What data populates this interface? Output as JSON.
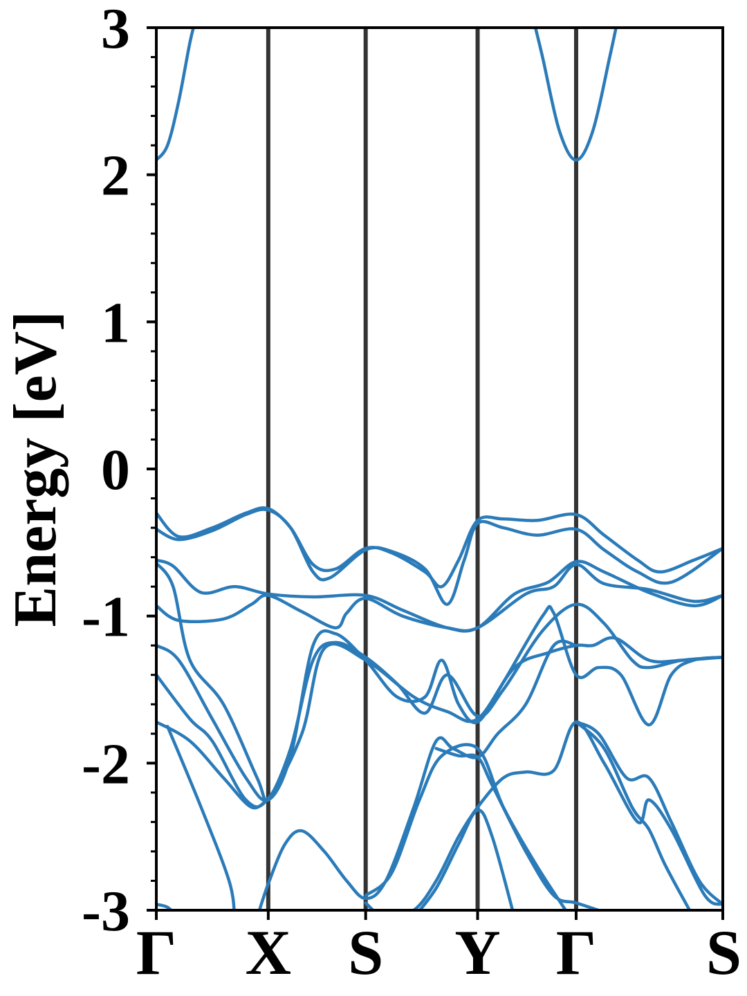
{
  "chart_data": {
    "type": "line",
    "title": "",
    "xlabel": "",
    "ylabel": "Energy [eV]",
    "ylim": [
      -3,
      3
    ],
    "xlim": [
      0,
      5.06
    ],
    "grid": false,
    "legend": "none",
    "colors": {
      "band": "#2b7bb9",
      "kpath": "#333333",
      "axis": "#000000"
    },
    "yticks": [
      {
        "value": 3,
        "label": "3"
      },
      {
        "value": 2,
        "label": "2"
      },
      {
        "value": 1,
        "label": "1"
      },
      {
        "value": 0,
        "label": "0"
      },
      {
        "value": -1,
        "label": "-1"
      },
      {
        "value": -2,
        "label": "-2"
      },
      {
        "value": -3,
        "label": "-3"
      }
    ],
    "kpoints": [
      {
        "label": "Γ",
        "x": 0
      },
      {
        "label": "X",
        "x": 1
      },
      {
        "label": "S",
        "x": 1.87
      },
      {
        "label": "Y",
        "x": 2.87
      },
      {
        "label": "Γ",
        "x": 3.75
      },
      {
        "label": "S",
        "x": 5.06
      }
    ],
    "series": [
      {
        "points": [
          [
            0,
            -0.3
          ],
          [
            0.2,
            -0.46
          ],
          [
            0.5,
            -0.4
          ],
          [
            0.8,
            -0.3
          ],
          [
            1,
            -0.27
          ],
          [
            1.2,
            -0.4
          ],
          [
            1.4,
            -0.65
          ],
          [
            1.6,
            -0.68
          ],
          [
            1.87,
            -0.54
          ],
          [
            2.1,
            -0.57
          ],
          [
            2.4,
            -0.7
          ],
          [
            2.55,
            -0.8
          ],
          [
            2.7,
            -0.62
          ],
          [
            2.87,
            -0.35
          ],
          [
            3.1,
            -0.34
          ],
          [
            3.4,
            -0.35
          ],
          [
            3.75,
            -0.31
          ],
          [
            4.0,
            -0.45
          ],
          [
            4.3,
            -0.62
          ],
          [
            4.5,
            -0.7
          ],
          [
            4.8,
            -0.62
          ],
          [
            5.06,
            -0.54
          ]
        ]
      },
      {
        "points": [
          [
            0,
            -0.41
          ],
          [
            0.2,
            -0.48
          ],
          [
            0.5,
            -0.42
          ],
          [
            0.8,
            -0.31
          ],
          [
            1,
            -0.28
          ],
          [
            1.2,
            -0.4
          ],
          [
            1.4,
            -0.7
          ],
          [
            1.55,
            -0.74
          ],
          [
            1.87,
            -0.55
          ],
          [
            2.1,
            -0.56
          ],
          [
            2.4,
            -0.68
          ],
          [
            2.6,
            -0.92
          ],
          [
            2.75,
            -0.62
          ],
          [
            2.87,
            -0.37
          ],
          [
            3.1,
            -0.4
          ],
          [
            3.4,
            -0.45
          ],
          [
            3.75,
            -0.41
          ],
          [
            4.0,
            -0.55
          ],
          [
            4.3,
            -0.7
          ],
          [
            4.6,
            -0.77
          ],
          [
            5.06,
            -0.54
          ]
        ]
      },
      {
        "points": [
          [
            0,
            -0.62
          ],
          [
            0.15,
            -0.66
          ],
          [
            0.4,
            -0.84
          ],
          [
            0.7,
            -0.8
          ],
          [
            1,
            -0.85
          ],
          [
            1.4,
            -0.87
          ],
          [
            1.87,
            -0.86
          ],
          [
            2.2,
            -0.96
          ],
          [
            2.6,
            -1.08
          ],
          [
            2.87,
            -1.08
          ],
          [
            3.2,
            -0.85
          ],
          [
            3.5,
            -0.77
          ],
          [
            3.75,
            -0.63
          ],
          [
            4.0,
            -0.7
          ],
          [
            4.4,
            -0.84
          ],
          [
            4.8,
            -0.93
          ],
          [
            5.06,
            -0.86
          ]
        ]
      },
      {
        "points": [
          [
            0,
            -0.93
          ],
          [
            0.2,
            -1.03
          ],
          [
            0.6,
            -1.02
          ],
          [
            0.85,
            -0.92
          ],
          [
            1,
            -0.86
          ],
          [
            1.3,
            -0.97
          ],
          [
            1.6,
            -1.08
          ],
          [
            1.7,
            -0.98
          ],
          [
            1.87,
            -0.88
          ],
          [
            2.2,
            -1.0
          ],
          [
            2.6,
            -1.08
          ],
          [
            2.87,
            -1.08
          ],
          [
            3.3,
            -0.85
          ],
          [
            3.55,
            -0.8
          ],
          [
            3.75,
            -0.65
          ],
          [
            4.0,
            -0.78
          ],
          [
            4.4,
            -0.82
          ],
          [
            4.8,
            -0.9
          ],
          [
            5.06,
            -0.86
          ]
        ]
      },
      {
        "points": [
          [
            0,
            -0.64
          ],
          [
            0.15,
            -0.8
          ],
          [
            0.3,
            -1.3
          ],
          [
            0.6,
            -1.6
          ],
          [
            0.9,
            -2.1
          ],
          [
            1,
            -2.24
          ],
          [
            1.2,
            -1.9
          ],
          [
            1.4,
            -1.3
          ],
          [
            1.6,
            -1.18
          ],
          [
            1.87,
            -1.28
          ],
          [
            2.15,
            -1.46
          ],
          [
            2.4,
            -1.66
          ],
          [
            2.6,
            -1.4
          ],
          [
            2.87,
            -1.68
          ],
          [
            3.1,
            -1.5
          ],
          [
            3.45,
            -1.1
          ],
          [
            3.75,
            -0.92
          ],
          [
            4.0,
            -1.05
          ],
          [
            4.25,
            -1.3
          ],
          [
            4.4,
            -1.35
          ],
          [
            4.7,
            -1.3
          ],
          [
            5.06,
            -1.28
          ]
        ]
      },
      {
        "points": [
          [
            0,
            -1.2
          ],
          [
            0.2,
            -1.3
          ],
          [
            0.5,
            -1.7
          ],
          [
            0.8,
            -2.1
          ],
          [
            1,
            -2.25
          ],
          [
            1.2,
            -1.95
          ],
          [
            1.4,
            -1.2
          ],
          [
            1.6,
            -1.12
          ],
          [
            1.87,
            -1.3
          ],
          [
            2.15,
            -1.55
          ],
          [
            2.4,
            -1.55
          ],
          [
            2.55,
            -1.3
          ],
          [
            2.7,
            -1.6
          ],
          [
            2.87,
            -1.72
          ],
          [
            3.1,
            -1.45
          ],
          [
            3.45,
            -1.0
          ],
          [
            3.55,
            -0.98
          ],
          [
            3.75,
            -1.4
          ],
          [
            3.95,
            -1.35
          ],
          [
            4.15,
            -1.4
          ],
          [
            4.4,
            -1.74
          ],
          [
            4.6,
            -1.4
          ],
          [
            4.8,
            -1.3
          ],
          [
            5.06,
            -1.28
          ]
        ]
      },
      {
        "points": [
          [
            0,
            -1.4
          ],
          [
            0.3,
            -1.7
          ],
          [
            0.5,
            -1.85
          ],
          [
            0.8,
            -2.25
          ],
          [
            1,
            -2.24
          ],
          [
            1.3,
            -1.8
          ],
          [
            1.5,
            -1.22
          ],
          [
            1.87,
            -1.3
          ],
          [
            2.3,
            -1.55
          ],
          [
            2.6,
            -1.65
          ],
          [
            2.87,
            -1.7
          ],
          [
            3.2,
            -1.35
          ],
          [
            3.5,
            -1.25
          ],
          [
            3.75,
            -1.2
          ],
          [
            3.9,
            -1.2
          ],
          [
            4.1,
            -1.15
          ],
          [
            4.4,
            -1.3
          ],
          [
            4.7,
            -1.3
          ],
          [
            5.06,
            -1.28
          ]
        ]
      },
      {
        "points": [
          [
            0,
            -1.72
          ],
          [
            0.3,
            -1.85
          ],
          [
            0.6,
            -2.1
          ],
          [
            0.85,
            -2.3
          ],
          [
            1,
            -2.24
          ]
        ]
      },
      {
        "points": [
          [
            0,
            -2.96
          ],
          [
            0.1,
            -2.98
          ],
          [
            0.2,
            -3.05
          ]
        ]
      },
      {
        "points": [
          [
            0.1,
            -1.75
          ],
          [
            0.4,
            -2.3
          ],
          [
            0.65,
            -2.8
          ],
          [
            0.7,
            -3.05
          ]
        ]
      },
      {
        "points": [
          [
            0.9,
            -3.05
          ],
          [
            1,
            -2.82
          ],
          [
            1.15,
            -2.55
          ],
          [
            1.3,
            -2.46
          ],
          [
            1.5,
            -2.6
          ],
          [
            1.7,
            -2.8
          ],
          [
            1.87,
            -2.92
          ],
          [
            2.05,
            -2.8
          ],
          [
            2.3,
            -2.3
          ],
          [
            2.5,
            -1.85
          ],
          [
            2.65,
            -1.9
          ],
          [
            2.87,
            -1.96
          ],
          [
            3.05,
            -1.8
          ],
          [
            3.3,
            -1.6
          ],
          [
            3.55,
            -1.2
          ],
          [
            3.75,
            -1.2
          ]
        ]
      },
      {
        "points": [
          [
            1.87,
            -2.9
          ],
          [
            2.1,
            -2.75
          ],
          [
            2.35,
            -2.25
          ],
          [
            2.55,
            -1.95
          ],
          [
            2.87,
            -1.9
          ],
          [
            3.1,
            -2.3
          ],
          [
            3.4,
            -2.7
          ],
          [
            3.7,
            -3.05
          ]
        ]
      },
      {
        "points": [
          [
            1.87,
            -2.95
          ],
          [
            2.0,
            -3.05
          ]
        ]
      },
      {
        "points": [
          [
            2.05,
            -3.05
          ],
          [
            2.3,
            -3.0
          ],
          [
            2.5,
            -2.8
          ],
          [
            2.7,
            -2.5
          ],
          [
            2.87,
            -2.3
          ],
          [
            3.1,
            -2.1
          ],
          [
            3.3,
            -2.06
          ],
          [
            3.55,
            -2.05
          ],
          [
            3.75,
            -1.72
          ],
          [
            4.0,
            -2.0
          ],
          [
            4.3,
            -2.4
          ],
          [
            4.4,
            -2.25
          ],
          [
            4.6,
            -2.45
          ],
          [
            4.9,
            -2.9
          ],
          [
            5.06,
            -2.96
          ]
        ]
      },
      {
        "points": [
          [
            2.3,
            -3.05
          ],
          [
            2.5,
            -2.85
          ],
          [
            2.7,
            -2.55
          ],
          [
            2.87,
            -2.32
          ],
          [
            3.0,
            -2.5
          ],
          [
            3.2,
            -3.05
          ]
        ]
      },
      {
        "points": [
          [
            2.5,
            -1.9
          ],
          [
            2.7,
            -1.95
          ],
          [
            2.87,
            -1.96
          ],
          [
            3.0,
            -2.15
          ],
          [
            3.3,
            -2.6
          ],
          [
            3.55,
            -2.9
          ],
          [
            3.75,
            -2.95
          ],
          [
            3.95,
            -3.0
          ]
        ]
      },
      {
        "points": [
          [
            3.75,
            -1.72
          ],
          [
            4.0,
            -1.9
          ],
          [
            4.25,
            -2.3
          ],
          [
            4.4,
            -2.45
          ],
          [
            4.55,
            -2.7
          ],
          [
            4.8,
            -3.05
          ]
        ]
      },
      {
        "points": [
          [
            3.75,
            -1.72
          ],
          [
            3.95,
            -1.8
          ],
          [
            4.2,
            -2.1
          ],
          [
            4.4,
            -2.1
          ],
          [
            4.6,
            -2.4
          ],
          [
            4.85,
            -2.8
          ],
          [
            5.06,
            -2.96
          ]
        ]
      },
      {
        "points": [
          [
            0,
            2.1
          ],
          [
            0.1,
            2.2
          ],
          [
            0.2,
            2.5
          ],
          [
            0.3,
            2.9
          ],
          [
            0.35,
            3.05
          ]
        ]
      },
      {
        "points": [
          [
            3.37,
            3.05
          ],
          [
            3.45,
            2.8
          ],
          [
            3.6,
            2.3
          ],
          [
            3.75,
            2.1
          ],
          [
            3.9,
            2.3
          ],
          [
            4.05,
            2.8
          ],
          [
            4.12,
            3.05
          ]
        ]
      }
    ]
  }
}
